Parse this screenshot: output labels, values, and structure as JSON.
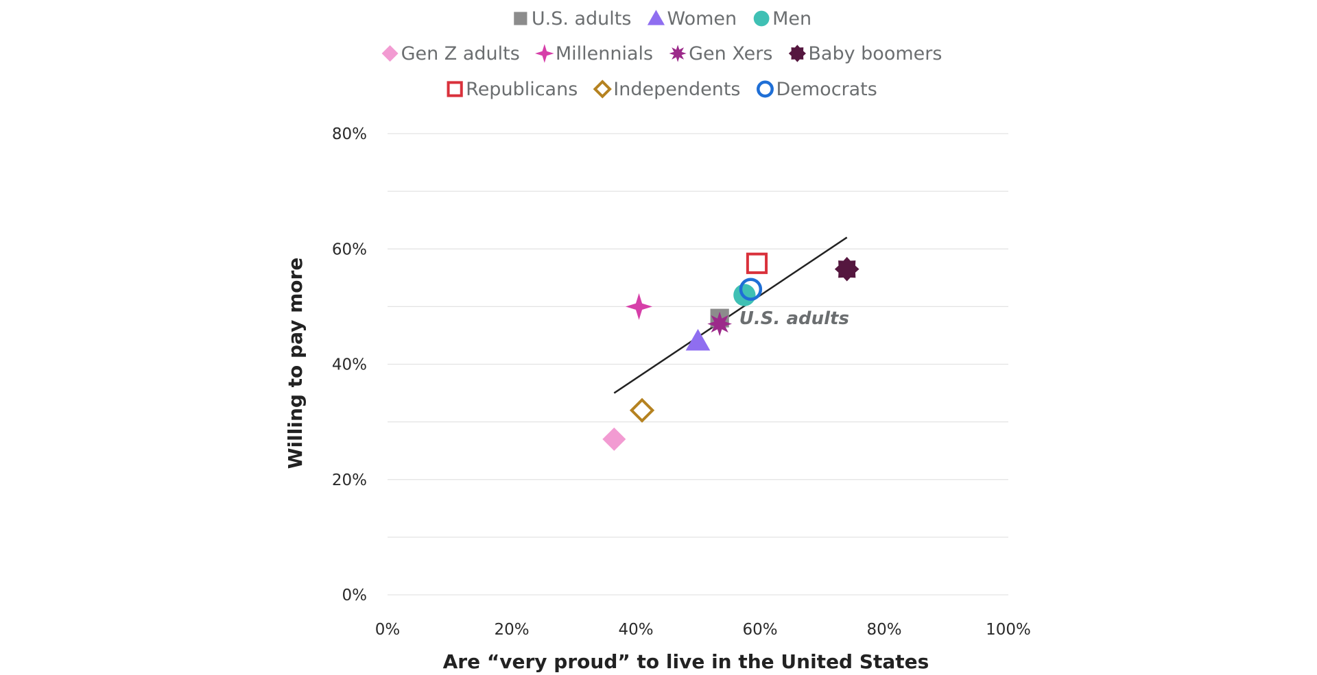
{
  "chart_data": {
    "type": "scatter",
    "xlabel": "Are “very proud” to live in the United States",
    "ylabel": "Willing to pay more",
    "xlim": [
      0,
      100
    ],
    "ylim": [
      0,
      80
    ],
    "x_ticks": [
      {
        "value": 0,
        "label": "0%"
      },
      {
        "value": 20,
        "label": "20%"
      },
      {
        "value": 40,
        "label": "40%"
      },
      {
        "value": 60,
        "label": "60%"
      },
      {
        "value": 80,
        "label": "80%"
      },
      {
        "value": 100,
        "label": "100%"
      }
    ],
    "y_ticks": [
      {
        "value": 0,
        "label": "0%"
      },
      {
        "value": 20,
        "label": "20%"
      },
      {
        "value": 40,
        "label": "40%"
      },
      {
        "value": 60,
        "label": "60%"
      },
      {
        "value": 80,
        "label": "80%"
      }
    ],
    "grid": "horizontal",
    "legend_position": "top",
    "series": [
      {
        "name": "U.S. adults",
        "marker": "square",
        "color": "#8c8c8c",
        "x": 53.5,
        "y": 48
      },
      {
        "name": "Women",
        "marker": "triangle",
        "color": "#8f6ef0",
        "x": 50,
        "y": 44
      },
      {
        "name": "Men",
        "marker": "circle",
        "color": "#3fc0b4",
        "x": 57.5,
        "y": 52
      },
      {
        "name": "Gen Z adults",
        "marker": "diamond",
        "color": "#f29bd2",
        "x": 36.5,
        "y": 27
      },
      {
        "name": "Millennials",
        "marker": "four-point-star",
        "color": "#d63fa9",
        "x": 40.5,
        "y": 50
      },
      {
        "name": "Gen Xers",
        "marker": "burst",
        "color": "#9c2a8a",
        "x": 53.5,
        "y": 47
      },
      {
        "name": "Baby boomers",
        "marker": "eight-point-star",
        "color": "#55173f",
        "x": 74,
        "y": 56.5
      },
      {
        "name": "Republicans",
        "marker": "open-square",
        "color": "#d9313b",
        "x": 59.5,
        "y": 57.5
      },
      {
        "name": "Independents",
        "marker": "open-diamond",
        "color": "#b58220",
        "x": 41,
        "y": 32
      },
      {
        "name": "Democrats",
        "marker": "open-circle",
        "color": "#1f6fd6",
        "x": 58.5,
        "y": 53
      }
    ],
    "trend_line": {
      "x": [
        36.5,
        74
      ],
      "y": [
        35,
        62
      ],
      "color": "#222222"
    },
    "annotations": [
      {
        "text": "U.S. adults",
        "x": 56,
        "y": 48
      }
    ]
  }
}
